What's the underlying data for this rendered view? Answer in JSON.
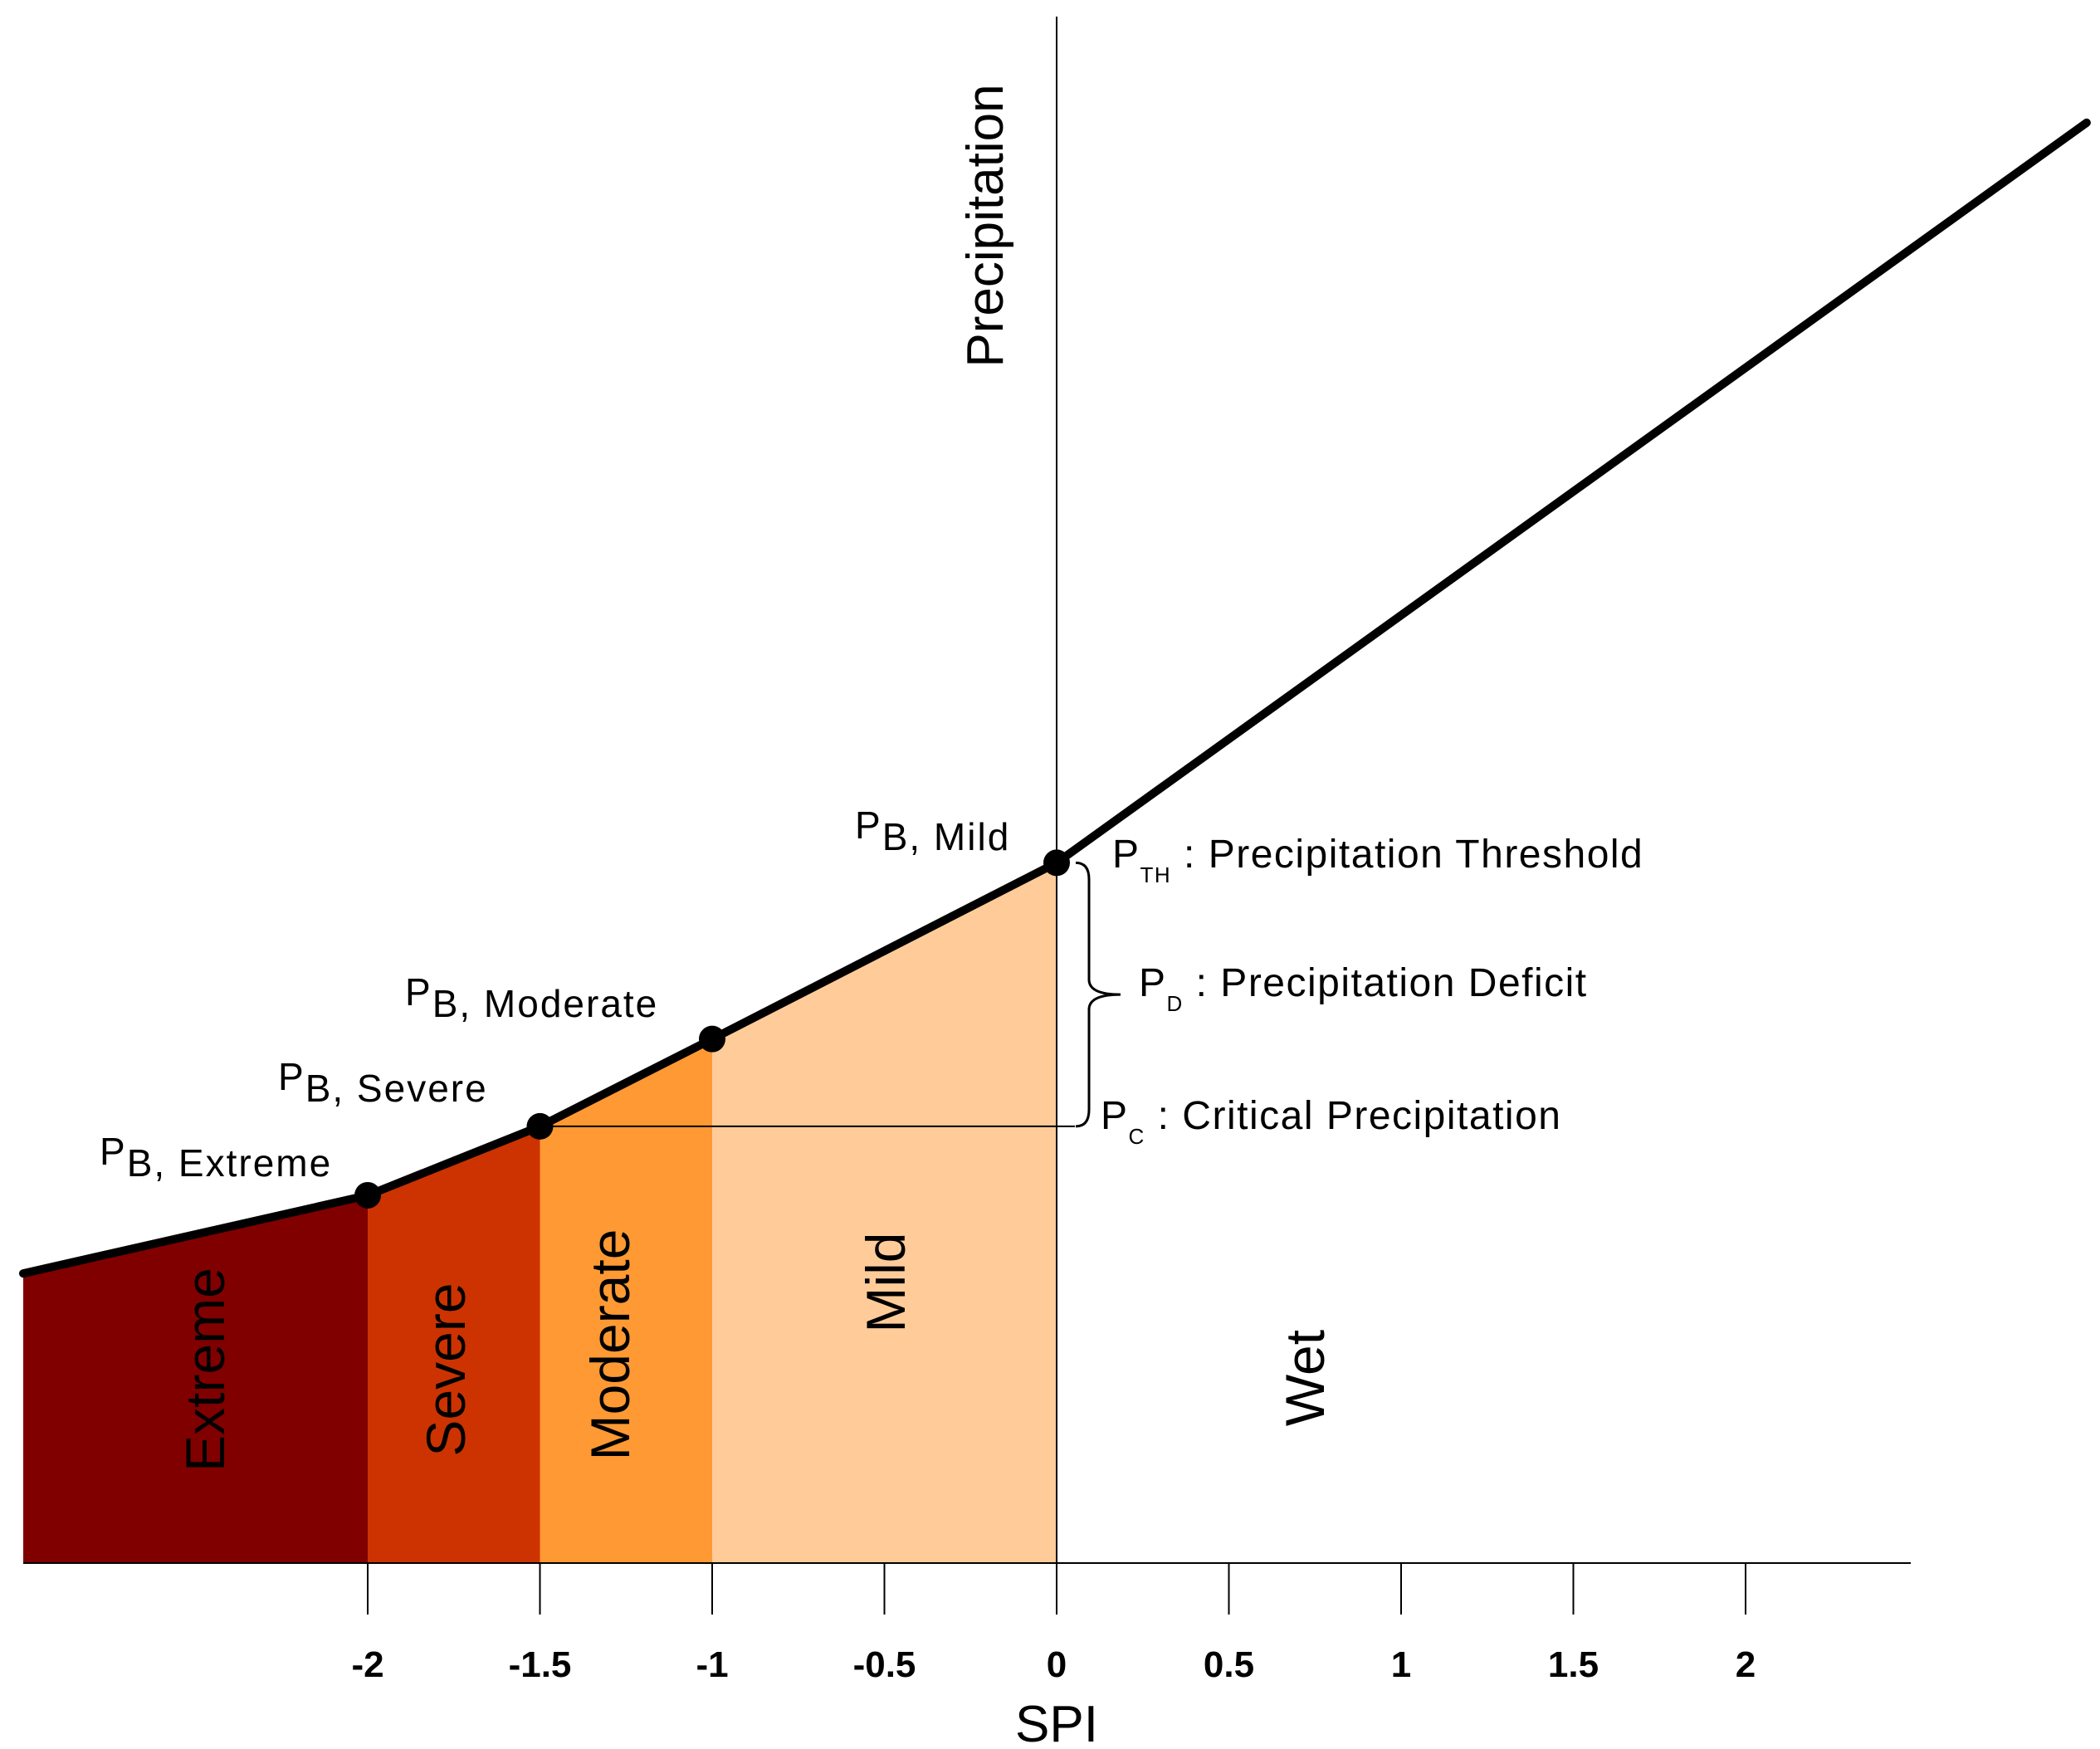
{
  "chart_data": {
    "type": "area",
    "xlabel": "SPI",
    "ylabel": "Precipitation",
    "xlim": [
      -3.0,
      2.5
    ],
    "ylim": [
      0,
      1.0
    ],
    "x_ticks": [
      -2,
      -1.5,
      -1,
      -0.5,
      0,
      0.5,
      1,
      1.5,
      2
    ],
    "x_tick_labels": [
      "-2",
      "-1.5",
      "-1",
      "-0.5",
      "0",
      "0.5",
      "1",
      "1.5",
      "2"
    ],
    "curve": {
      "x": [
        -3.0,
        -2.0,
        -1.5,
        -1.0,
        0.0,
        2.99
      ],
      "y": [
        0.189,
        0.24,
        0.285,
        0.342,
        0.457,
        0.94
      ]
    },
    "breakpoints": [
      {
        "x": -2.0,
        "y": 0.24,
        "label": "P",
        "label_sub": "B",
        "label_suffix": ", Extreme"
      },
      {
        "x": -1.5,
        "y": 0.285,
        "label": "P",
        "label_sub": "B",
        "label_suffix": ", Severe"
      },
      {
        "x": -1.0,
        "y": 0.342,
        "label": "P",
        "label_sub": "B",
        "label_suffix": ", Moderate"
      },
      {
        "x": 0.0,
        "y": 0.457,
        "label": "P",
        "label_sub": "B",
        "label_suffix": ", Mild"
      }
    ],
    "regions": [
      {
        "name": "Extreme",
        "x_from": -3.0,
        "x_to": -2.0,
        "color": "#800000"
      },
      {
        "name": "Severe",
        "x_from": -2.0,
        "x_to": -1.5,
        "color": "#CC3300"
      },
      {
        "name": "Moderate",
        "x_from": -1.5,
        "x_to": -1.0,
        "color": "#FF9933"
      },
      {
        "name": "Mild",
        "x_from": -1.0,
        "x_to": 0.0,
        "color": "#FFCC99"
      },
      {
        "name": "Wet",
        "x_from": 0.0,
        "x_to": 2.5,
        "color": "#FFFFFF"
      }
    ],
    "critical_precipitation_y": 0.285,
    "annotations": {
      "threshold": {
        "symbol": "P",
        "sub": "TH",
        "text": " : Precipitation Threshold"
      },
      "deficit": {
        "symbol": "P",
        "sub": "D",
        "text": " : Precipitation Deficit"
      },
      "critical": {
        "symbol": "P",
        "sub": "C",
        "text": " : Critical Precipitation"
      }
    }
  }
}
